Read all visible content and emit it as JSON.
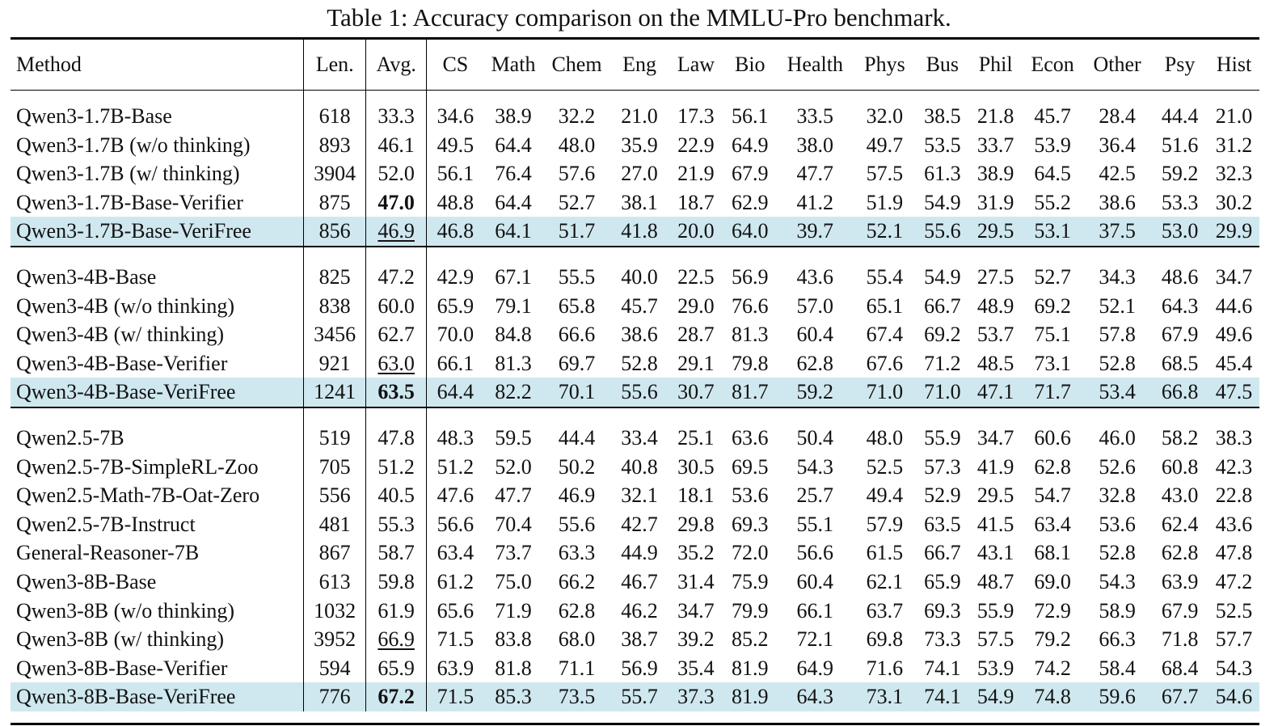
{
  "caption": "Table 1: Accuracy comparison on the MMLU-Pro benchmark.",
  "columns": [
    "Method",
    "Len.",
    "Avg.",
    "CS",
    "Math",
    "Chem",
    "Eng",
    "Law",
    "Bio",
    "Health",
    "Phys",
    "Bus",
    "Phil",
    "Econ",
    "Other",
    "Psy",
    "Hist"
  ],
  "groups": [
    {
      "rows": [
        {
          "method": "Qwen3-1.7B-Base",
          "values": [
            "618",
            "33.3",
            "34.6",
            "38.9",
            "32.2",
            "21.0",
            "17.3",
            "56.1",
            "33.5",
            "32.0",
            "38.5",
            "21.8",
            "45.7",
            "28.4",
            "44.4",
            "21.0"
          ]
        },
        {
          "method": "Qwen3-1.7B (w/o thinking)",
          "values": [
            "893",
            "46.1",
            "49.5",
            "64.4",
            "48.0",
            "35.9",
            "22.9",
            "64.9",
            "38.0",
            "49.7",
            "53.5",
            "33.7",
            "53.9",
            "36.4",
            "51.6",
            "31.2"
          ]
        },
        {
          "method": "Qwen3-1.7B (w/ thinking)",
          "values": [
            "3904",
            "52.0",
            "56.1",
            "76.4",
            "57.6",
            "27.0",
            "21.9",
            "67.9",
            "47.7",
            "57.5",
            "61.3",
            "38.9",
            "64.5",
            "42.5",
            "59.2",
            "32.3"
          ]
        },
        {
          "method": "Qwen3-1.7B-Base-Verifier",
          "values": [
            "875",
            "47.0",
            "48.8",
            "64.4",
            "52.7",
            "38.1",
            "18.7",
            "62.9",
            "41.2",
            "51.9",
            "54.9",
            "31.9",
            "55.2",
            "38.6",
            "53.3",
            "30.2"
          ],
          "avg_style": "bold"
        },
        {
          "method": "Qwen3-1.7B-Base-VeriFree",
          "values": [
            "856",
            "46.9",
            "46.8",
            "64.1",
            "51.7",
            "41.8",
            "20.0",
            "64.0",
            "39.7",
            "52.1",
            "55.6",
            "29.5",
            "53.1",
            "37.5",
            "53.0",
            "29.9"
          ],
          "avg_style": "underline",
          "highlight": true
        }
      ]
    },
    {
      "rows": [
        {
          "method": "Qwen3-4B-Base",
          "values": [
            "825",
            "47.2",
            "42.9",
            "67.1",
            "55.5",
            "40.0",
            "22.5",
            "56.9",
            "43.6",
            "55.4",
            "54.9",
            "27.5",
            "52.7",
            "34.3",
            "48.6",
            "34.7"
          ]
        },
        {
          "method": "Qwen3-4B (w/o thinking)",
          "values": [
            "838",
            "60.0",
            "65.9",
            "79.1",
            "65.8",
            "45.7",
            "29.0",
            "76.6",
            "57.0",
            "65.1",
            "66.7",
            "48.9",
            "69.2",
            "52.1",
            "64.3",
            "44.6"
          ]
        },
        {
          "method": "Qwen3-4B (w/ thinking)",
          "values": [
            "3456",
            "62.7",
            "70.0",
            "84.8",
            "66.6",
            "38.6",
            "28.7",
            "81.3",
            "60.4",
            "67.4",
            "69.2",
            "53.7",
            "75.1",
            "57.8",
            "67.9",
            "49.6"
          ]
        },
        {
          "method": "Qwen3-4B-Base-Verifier",
          "values": [
            "921",
            "63.0",
            "66.1",
            "81.3",
            "69.7",
            "52.8",
            "29.1",
            "79.8",
            "62.8",
            "67.6",
            "71.2",
            "48.5",
            "73.1",
            "52.8",
            "68.5",
            "45.4"
          ],
          "avg_style": "underline"
        },
        {
          "method": "Qwen3-4B-Base-VeriFree",
          "values": [
            "1241",
            "63.5",
            "64.4",
            "82.2",
            "70.1",
            "55.6",
            "30.7",
            "81.7",
            "59.2",
            "71.0",
            "71.0",
            "47.1",
            "71.7",
            "53.4",
            "66.8",
            "47.5"
          ],
          "avg_style": "bold",
          "highlight": true
        }
      ]
    },
    {
      "rows": [
        {
          "method": "Qwen2.5-7B",
          "values": [
            "519",
            "47.8",
            "48.3",
            "59.5",
            "44.4",
            "33.4",
            "25.1",
            "63.6",
            "50.4",
            "48.0",
            "55.9",
            "34.7",
            "60.6",
            "46.0",
            "58.2",
            "38.3"
          ]
        },
        {
          "method": "Qwen2.5-7B-SimpleRL-Zoo",
          "values": [
            "705",
            "51.2",
            "51.2",
            "52.0",
            "50.2",
            "40.8",
            "30.5",
            "69.5",
            "54.3",
            "52.5",
            "57.3",
            "41.9",
            "62.8",
            "52.6",
            "60.8",
            "42.3"
          ]
        },
        {
          "method": "Qwen2.5-Math-7B-Oat-Zero",
          "values": [
            "556",
            "40.5",
            "47.6",
            "47.7",
            "46.9",
            "32.1",
            "18.1",
            "53.6",
            "25.7",
            "49.4",
            "52.9",
            "29.5",
            "54.7",
            "32.8",
            "43.0",
            "22.8"
          ]
        },
        {
          "method": "Qwen2.5-7B-Instruct",
          "values": [
            "481",
            "55.3",
            "56.6",
            "70.4",
            "55.6",
            "42.7",
            "29.8",
            "69.3",
            "55.1",
            "57.9",
            "63.5",
            "41.5",
            "63.4",
            "53.6",
            "62.4",
            "43.6"
          ]
        },
        {
          "method": "General-Reasoner-7B",
          "values": [
            "867",
            "58.7",
            "63.4",
            "73.7",
            "63.3",
            "44.9",
            "35.2",
            "72.0",
            "56.6",
            "61.5",
            "66.7",
            "43.1",
            "68.1",
            "52.8",
            "62.8",
            "47.8"
          ]
        },
        {
          "method": "Qwen3-8B-Base",
          "values": [
            "613",
            "59.8",
            "61.2",
            "75.0",
            "66.2",
            "46.7",
            "31.4",
            "75.9",
            "60.4",
            "62.1",
            "65.9",
            "48.7",
            "69.0",
            "54.3",
            "63.9",
            "47.2"
          ]
        },
        {
          "method": "Qwen3-8B (w/o thinking)",
          "values": [
            "1032",
            "61.9",
            "65.6",
            "71.9",
            "62.8",
            "46.2",
            "34.7",
            "79.9",
            "66.1",
            "63.7",
            "69.3",
            "55.9",
            "72.9",
            "58.9",
            "67.9",
            "52.5"
          ]
        },
        {
          "method": "Qwen3-8B (w/ thinking)",
          "values": [
            "3952",
            "66.9",
            "71.5",
            "83.8",
            "68.0",
            "38.7",
            "39.2",
            "85.2",
            "72.1",
            "69.8",
            "73.3",
            "57.5",
            "79.2",
            "66.3",
            "71.8",
            "57.7"
          ],
          "avg_style": "underline"
        },
        {
          "method": "Qwen3-8B-Base-Verifier",
          "values": [
            "594",
            "65.9",
            "63.9",
            "81.8",
            "71.1",
            "56.9",
            "35.4",
            "81.9",
            "64.9",
            "71.6",
            "74.1",
            "53.9",
            "74.2",
            "58.4",
            "68.4",
            "54.3"
          ]
        },
        {
          "method": "Qwen3-8B-Base-VeriFree",
          "values": [
            "776",
            "67.2",
            "71.5",
            "85.3",
            "73.5",
            "55.7",
            "37.3",
            "81.9",
            "64.3",
            "73.1",
            "74.1",
            "54.9",
            "74.8",
            "59.6",
            "67.7",
            "54.6"
          ],
          "avg_style": "bold",
          "highlight": true
        }
      ]
    }
  ]
}
